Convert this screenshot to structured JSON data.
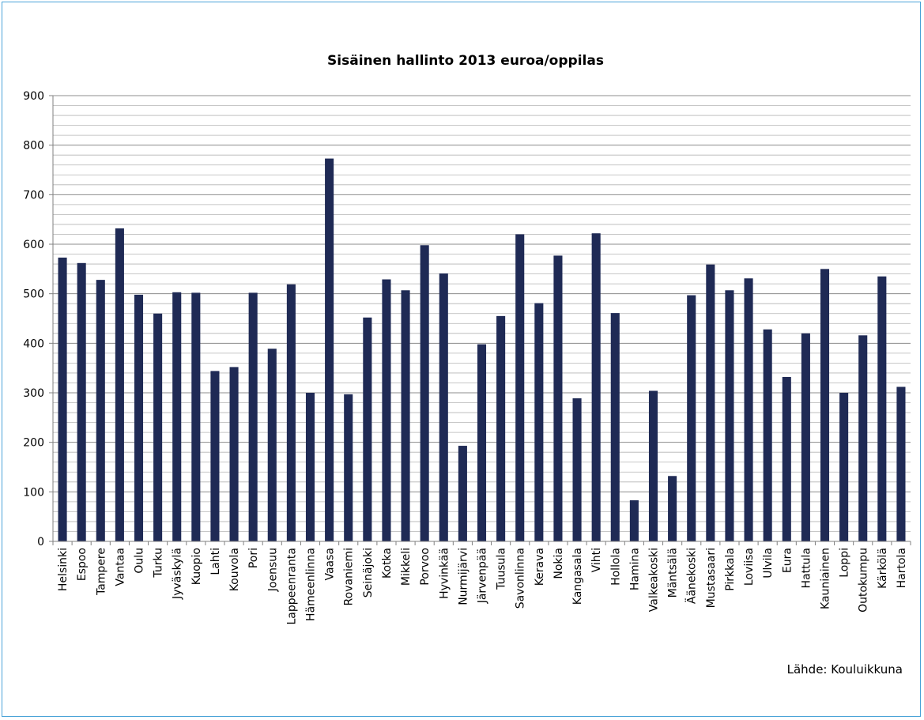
{
  "chart_data": {
    "type": "bar",
    "title": "Sisäinen hallinto 2013 euroa/oppilas",
    "xlabel": "",
    "ylabel": "",
    "ylim": [
      0,
      900
    ],
    "yticks": [
      0,
      100,
      200,
      300,
      400,
      500,
      600,
      700,
      800,
      900
    ],
    "grid": true,
    "legend": "none",
    "bar_color": "#1f2a55",
    "categories": [
      "Helsinki",
      "Espoo",
      "Tampere",
      "Vantaa",
      "Oulu",
      "Turku",
      "Jyväskylä",
      "Kuopio",
      "Lahti",
      "Kouvola",
      "Pori",
      "Joensuu",
      "Lappeenranta",
      "Hämeenlinna",
      "Vaasa",
      "Rovaniemi",
      "Seinäjoki",
      "Kotka",
      "Mikkeli",
      "Porvoo",
      "Hyvinkää",
      "Nurmijärvi",
      "Järvenpää",
      "Tuusula",
      "Savonlinna",
      "Kerava",
      "Nokia",
      "Kangasala",
      "Vihti",
      "Hollola",
      "Hamina",
      "Valkeakoski",
      "Mäntsälä",
      "Äänekoski",
      "Mustasaari",
      "Pirkkala",
      "Loviisa",
      "Ulvila",
      "Eura",
      "Hattula",
      "Kauniainen",
      "Loppi",
      "Outokumpu",
      "Kärkölä",
      "Hartola"
    ],
    "values": [
      573,
      562,
      528,
      632,
      498,
      460,
      503,
      502,
      344,
      352,
      502,
      389,
      519,
      300,
      773,
      297,
      452,
      529,
      507,
      598,
      541,
      193,
      398,
      455,
      620,
      481,
      577,
      289,
      622,
      461,
      83,
      304,
      132,
      497,
      559,
      507,
      531,
      428,
      332,
      420,
      550,
      300,
      416,
      535,
      312
    ],
    "source": "Lähde: Kouluikkuna"
  }
}
